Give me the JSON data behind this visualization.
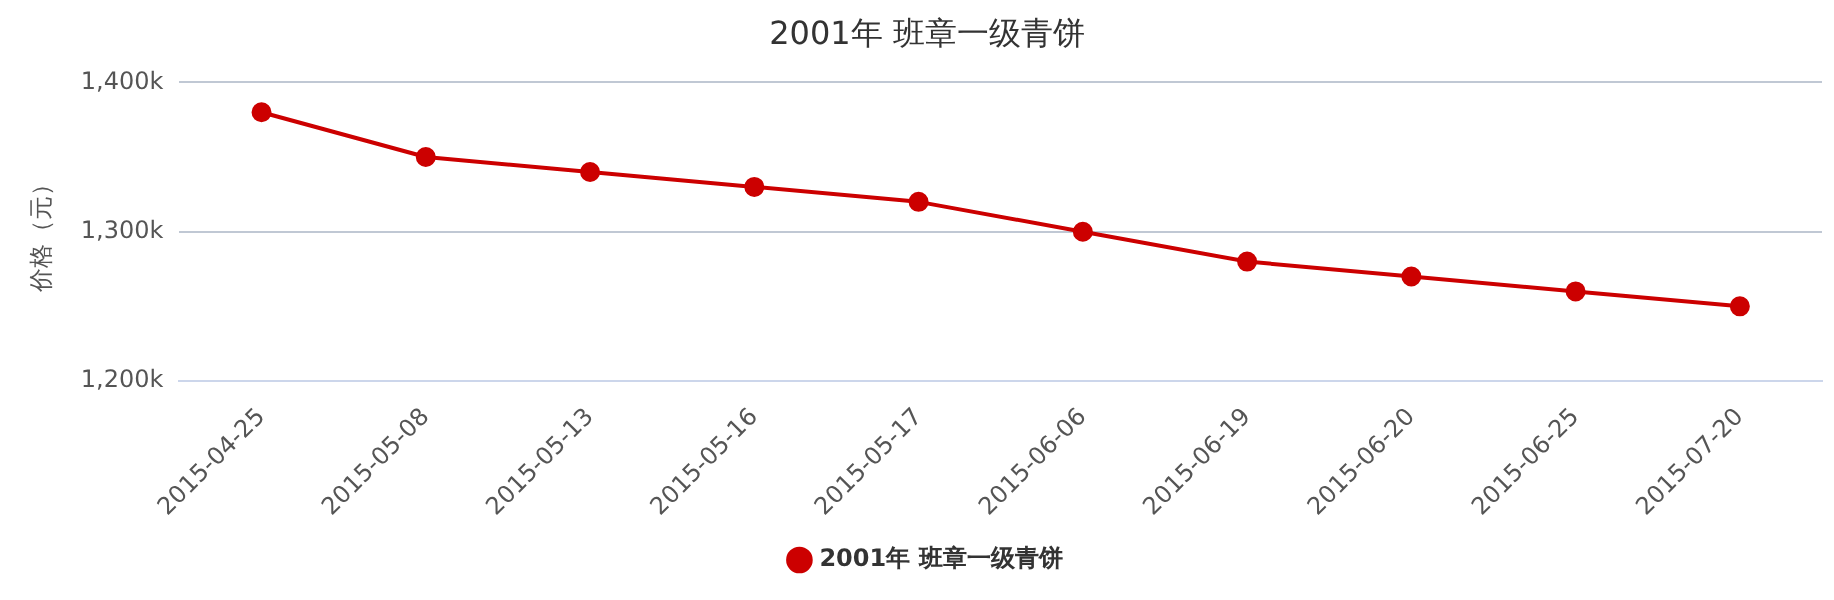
{
  "chart_data": {
    "type": "line",
    "title": "2001年 班章一级青饼",
    "ylabel": "价格（元）",
    "categories": [
      "2015-04-25",
      "2015-05-08",
      "2015-05-13",
      "2015-05-16",
      "2015-05-17",
      "2015-06-06",
      "2015-06-19",
      "2015-06-20",
      "2015-06-25",
      "2015-07-20"
    ],
    "series": [
      {
        "name": "2001年 班章一级青饼",
        "color": "#cc0000",
        "values": [
          1380,
          1350,
          1340,
          1330,
          1320,
          1300,
          1280,
          1270,
          1260,
          1250
        ]
      }
    ],
    "ylim": [
      1200,
      1400
    ],
    "yticks": [
      {
        "value": 1200,
        "label": "1,200k"
      },
      {
        "value": 1300,
        "label": "1,300k"
      },
      {
        "value": 1400,
        "label": "1,400k"
      }
    ],
    "grid": "y",
    "legend": "bottom",
    "marker": "circle",
    "line_style": "solid"
  }
}
